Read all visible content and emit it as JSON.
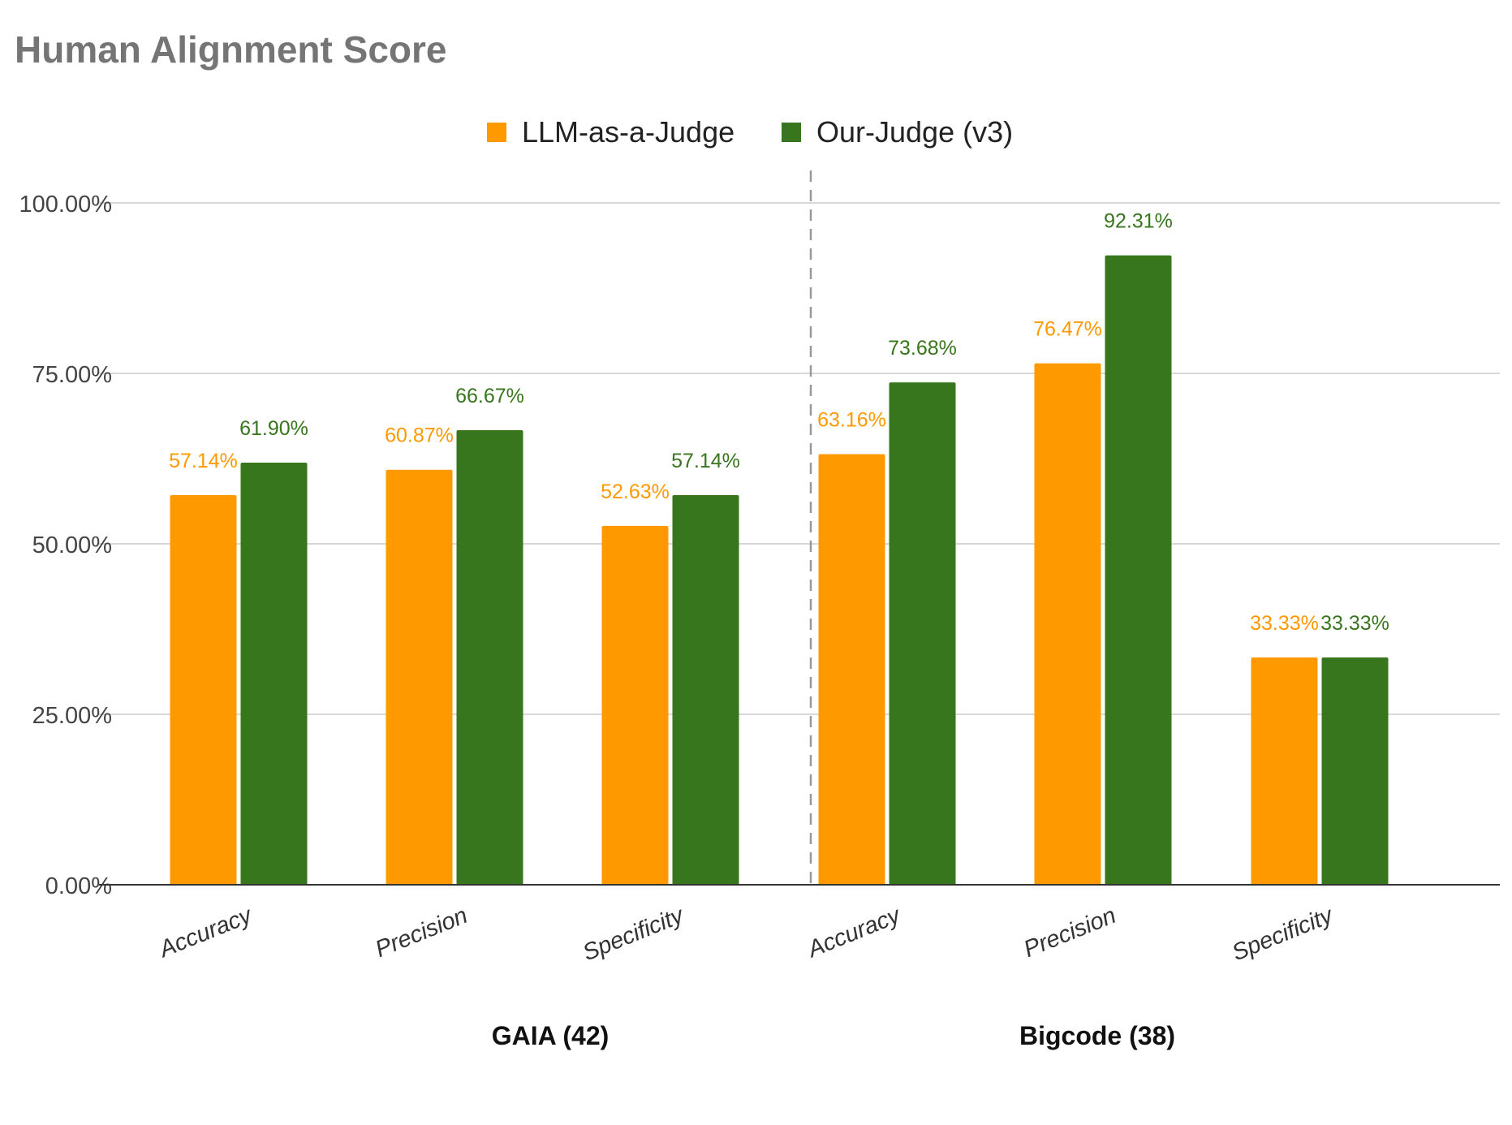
{
  "chart_data": {
    "type": "bar",
    "title": "Human Alignment Score",
    "groups": [
      {
        "name": "GAIA (42)",
        "categories": [
          "Accuracy",
          "Precision",
          "Specificity"
        ]
      },
      {
        "name": "Bigcode (38)",
        "categories": [
          "Accuracy",
          "Precision",
          "Specificity"
        ]
      }
    ],
    "categories": [
      "Accuracy",
      "Precision",
      "Specificity",
      "Accuracy",
      "Precision",
      "Specificity"
    ],
    "series": [
      {
        "name": "LLM-as-a-Judge",
        "color": "#ff9900",
        "values": [
          57.14,
          60.87,
          52.63,
          63.16,
          76.47,
          33.33
        ],
        "labels": [
          "57.14%",
          "60.87%",
          "52.63%",
          "63.16%",
          "76.47%",
          "33.33%"
        ]
      },
      {
        "name": "Our-Judge (v3)",
        "color": "#38761d",
        "values": [
          61.9,
          66.67,
          57.14,
          73.68,
          92.31,
          33.33
        ],
        "labels": [
          "61.90%",
          "66.67%",
          "57.14%",
          "73.68%",
          "92.31%",
          "33.33%"
        ]
      }
    ],
    "yticks": [
      "0.00%",
      "25.00%",
      "50.00%",
      "75.00%",
      "100.00%"
    ],
    "ytick_values": [
      0,
      25,
      50,
      75,
      100
    ],
    "ylim": [
      0,
      100
    ],
    "xlabel": "",
    "ylabel": "",
    "grid": true,
    "legend_position": "top",
    "group_separator": "dashed"
  }
}
